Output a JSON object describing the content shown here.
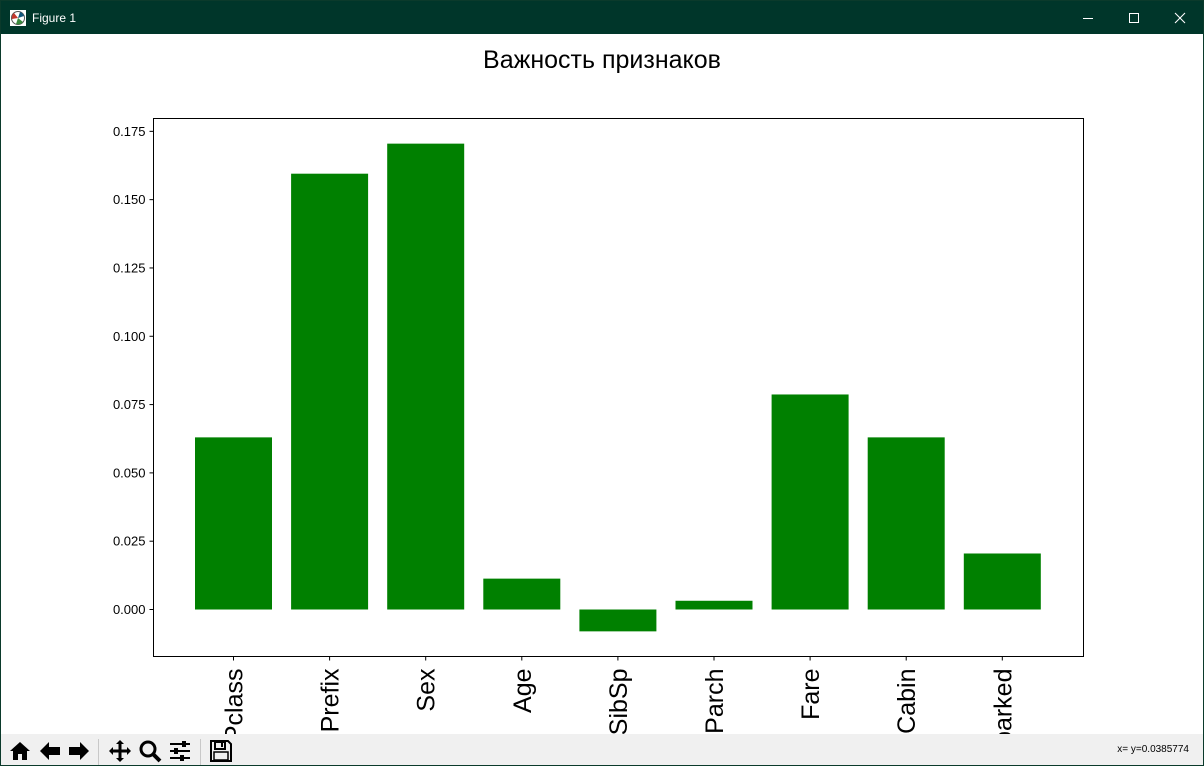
{
  "window": {
    "title": "Figure 1",
    "accent_color": "#00362a",
    "controls": [
      "minimize-icon",
      "maximize-icon",
      "close-icon"
    ]
  },
  "toolbar": {
    "buttons": [
      {
        "name": "home-button",
        "icon": "home-icon"
      },
      {
        "name": "back-button",
        "icon": "arrow-left-icon"
      },
      {
        "name": "forward-button",
        "icon": "arrow-right-icon"
      },
      {
        "name": "pan-button",
        "icon": "move-icon"
      },
      {
        "name": "zoom-button",
        "icon": "magnifier-icon"
      },
      {
        "name": "configure-subplots-button",
        "icon": "sliders-icon"
      },
      {
        "name": "save-button",
        "icon": "floppy-disk-icon"
      }
    ],
    "coordinates": "x= y=0.0385774"
  },
  "chart_data": {
    "type": "bar",
    "title": "Важность признаков",
    "xlabel": "",
    "ylabel": "",
    "categories": [
      "Pclass",
      "Prefix",
      "Sex",
      "Age",
      "SibSp",
      "Parch",
      "Fare",
      "Cabin",
      "Embarked"
    ],
    "values": [
      0.063,
      0.1595,
      0.1705,
      0.0113,
      -0.008,
      0.0032,
      0.0787,
      0.063,
      0.0205
    ],
    "color": "#008000",
    "ylim": [
      -0.0172,
      0.1797
    ],
    "yticks": [
      0.0,
      0.025,
      0.05,
      0.075,
      0.1,
      0.125,
      0.15,
      0.175
    ],
    "ytick_labels": [
      "0.000",
      "0.025",
      "0.050",
      "0.075",
      "0.100",
      "0.125",
      "0.150",
      "0.175"
    ],
    "xtick_rotation": 90,
    "grid": false,
    "legend": "none"
  }
}
